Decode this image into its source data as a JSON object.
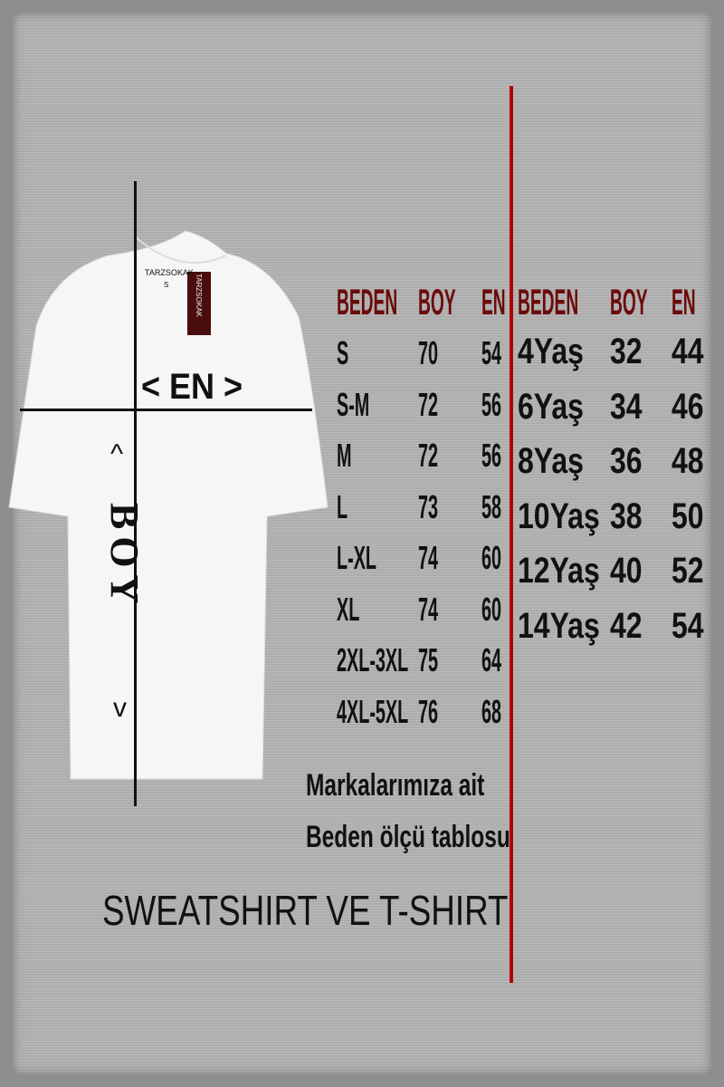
{
  "shirt": {
    "neck_label": "TARZSOKAK",
    "neck_size": "S",
    "hang_tag": "TARZSOKAK",
    "width_label": "< EN >",
    "length_label": "BOY",
    "arrow_up": "^",
    "arrow_down": "v"
  },
  "adult_table": {
    "headers": [
      "BEDEN",
      "BOY",
      "EN"
    ],
    "rows": [
      [
        "S",
        "70",
        "54"
      ],
      [
        "S-M",
        "72",
        "56"
      ],
      [
        "M",
        "72",
        "56"
      ],
      [
        "L",
        "73",
        "58"
      ],
      [
        "L-XL",
        "74",
        "60"
      ],
      [
        "XL",
        "74",
        "60"
      ],
      [
        "2XL-3XL",
        "75",
        "64"
      ],
      [
        "4XL-5XL",
        "76",
        "68"
      ]
    ]
  },
  "kids_table": {
    "headers": [
      "BEDEN",
      "BOY",
      "EN"
    ],
    "rows": [
      [
        "4Yaş",
        "32",
        "44"
      ],
      [
        "6Yaş",
        "34",
        "46"
      ],
      [
        "8Yaş",
        "36",
        "48"
      ],
      [
        "10Yaş",
        "38",
        "50"
      ],
      [
        "12Yaş",
        "40",
        "52"
      ],
      [
        "14Yaş",
        "42",
        "54"
      ]
    ]
  },
  "note": {
    "line1": "Markalarımıza ait",
    "line2": "Beden ölçü tablosu"
  },
  "footer": "SWEATSHIRT VE T-SHIRT",
  "colors": {
    "header": "#6b0a0a",
    "divider": "#b00000",
    "background": "#b4b4b4"
  }
}
